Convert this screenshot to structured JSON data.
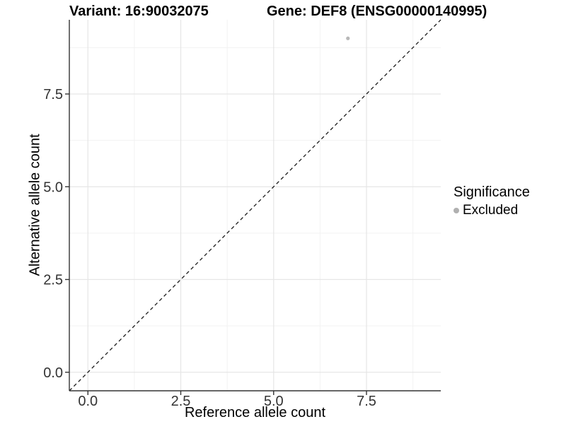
{
  "chart_data": {
    "type": "scatter",
    "titles": {
      "left": "Variant: 16:90032075",
      "right": "Gene: DEF8 (ENSG00000140995)"
    },
    "xlabel": "Reference allele count",
    "ylabel": "Alternative allele count",
    "xlim": [
      -0.5,
      9.5
    ],
    "ylim": [
      -0.5,
      9.5
    ],
    "x_major_ticks": [
      0,
      2.5,
      5,
      7.5
    ],
    "x_tick_labels": [
      "0.0",
      "2.5",
      "5.0",
      "7.5"
    ],
    "y_major_ticks": [
      0,
      2.5,
      5,
      7.5
    ],
    "y_tick_labels": [
      "0.0",
      "2.5",
      "5.0",
      "7.5"
    ],
    "x_minor_ticks": [
      1.25,
      3.75,
      6.25,
      8.75
    ],
    "y_minor_ticks": [
      1.25,
      3.75,
      6.25,
      8.75
    ],
    "grid": true,
    "identity_line": {
      "style": "dashed",
      "from": -0.5,
      "to": 9.5
    },
    "points": [
      {
        "x": 7,
        "y": 9,
        "significance": "Excluded"
      }
    ],
    "legend": {
      "title": "Significance",
      "position": "right",
      "entries": [
        {
          "label": "Excluded",
          "color": "#b0b0b0"
        }
      ]
    },
    "colors": {
      "point": "#b8b8b8",
      "grid_major": "#e6e6e6",
      "grid_minor": "#f2f2f2",
      "axis": "#333333",
      "identity_line": "#1a1a1a",
      "tick_label": "#333333",
      "background": "#ffffff"
    }
  }
}
